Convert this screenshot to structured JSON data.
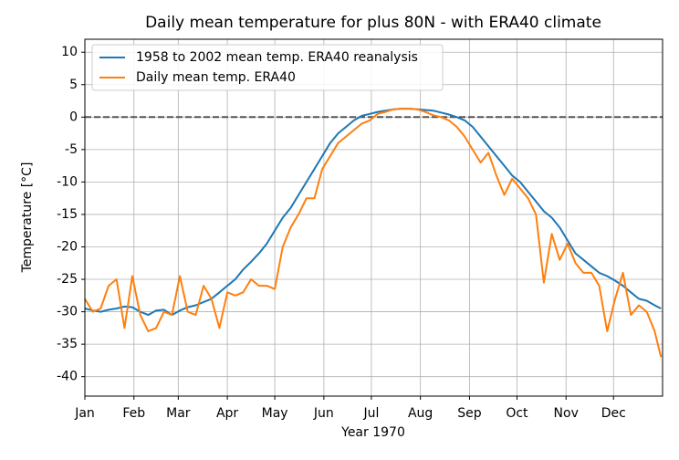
{
  "chart_data": {
    "type": "line",
    "title": "Daily mean temperature for plus 80N - with ERA40 climate",
    "x_label": "Year 1970",
    "y_label": "Temperature [$^\\circ$C]",
    "x": [
      0,
      5,
      10,
      15,
      20,
      25,
      30,
      35,
      40,
      45,
      50,
      55,
      60,
      65,
      70,
      75,
      80,
      85,
      90,
      95,
      100,
      105,
      110,
      115,
      120,
      125,
      130,
      135,
      140,
      145,
      150,
      155,
      160,
      165,
      170,
      175,
      180,
      185,
      190,
      195,
      200,
      205,
      210,
      215,
      220,
      225,
      230,
      235,
      240,
      245,
      250,
      255,
      260,
      265,
      270,
      275,
      280,
      285,
      290,
      295,
      300,
      305,
      310,
      315,
      320,
      325,
      330,
      335,
      340,
      345,
      350,
      355,
      360,
      364
    ],
    "series": [
      {
        "name": "1958 to 2002 mean temp. ERA40 reanalysis",
        "color": "#1f77b4",
        "values": [
          -29.5,
          -29.8,
          -30,
          -29.7,
          -29.5,
          -29.2,
          -29.3,
          -30,
          -30.5,
          -29.8,
          -29.7,
          -30.5,
          -29.8,
          -29.3,
          -29,
          -28.5,
          -28,
          -27,
          -26,
          -25,
          -23.5,
          -22.3,
          -21,
          -19.5,
          -17.5,
          -15.5,
          -14,
          -12,
          -10,
          -8,
          -6,
          -4,
          -2.5,
          -1.5,
          -0.5,
          0.2,
          0.5,
          0.8,
          1,
          1.2,
          1.3,
          1.3,
          1.2,
          1.1,
          1,
          0.7,
          0.4,
          0,
          -0.5,
          -1.5,
          -3,
          -4.5,
          -6,
          -7.5,
          -9,
          -10,
          -11.5,
          -13,
          -14.5,
          -15.5,
          -17,
          -19,
          -21,
          -22,
          -23,
          -24,
          -24.5,
          -25.2,
          -26,
          -27,
          -28,
          -28.3,
          -29,
          -29.5
        ]
      },
      {
        "name": "Daily mean temp. ERA40",
        "color": "#ff7f0e",
        "values": [
          -28,
          -30,
          -29.5,
          -26,
          -25,
          -32.5,
          -24.5,
          -30.5,
          -33,
          -32.5,
          -30,
          -30.5,
          -24.5,
          -30,
          -30.5,
          -26,
          -28,
          -32.5,
          -27,
          -27.5,
          -27,
          -25,
          -26,
          -26,
          -26.5,
          -20,
          -17,
          -15,
          -12.5,
          -12.5,
          -8,
          -6,
          -4,
          -3,
          -2,
          -1,
          -0.5,
          0.5,
          0.8,
          1.2,
          1.3,
          1.3,
          1.2,
          0.8,
          0.3,
          0,
          -0.5,
          -1.5,
          -3,
          -5,
          -7,
          -5.5,
          -9,
          -12,
          -9.5,
          -11,
          -12.5,
          -15,
          -25.5,
          -18,
          -22,
          -19.5,
          -22.5,
          -24,
          -24,
          -26,
          -33,
          -28,
          -24,
          -30.5,
          -29,
          -30,
          -33,
          -37
        ]
      }
    ],
    "hline": 0,
    "xlim": [
      0,
      365
    ],
    "xticks": [
      {
        "value": 0,
        "label": "Jan"
      },
      {
        "value": 31,
        "label": "Feb"
      },
      {
        "value": 59,
        "label": "Mar"
      },
      {
        "value": 90,
        "label": "Apr"
      },
      {
        "value": 120,
        "label": "May"
      },
      {
        "value": 151,
        "label": "Jun"
      },
      {
        "value": 181,
        "label": "Jul"
      },
      {
        "value": 212,
        "label": "Aug"
      },
      {
        "value": 243,
        "label": "Sep"
      },
      {
        "value": 273,
        "label": "Oct"
      },
      {
        "value": 304,
        "label": "Nov"
      },
      {
        "value": 334,
        "label": "Dec"
      }
    ],
    "ylim": [
      -43,
      12
    ],
    "yticks": [
      -40,
      -35,
      -30,
      -25,
      -20,
      -15,
      -10,
      -5,
      0,
      5,
      10
    ],
    "grid": true,
    "legend": "upper left"
  }
}
